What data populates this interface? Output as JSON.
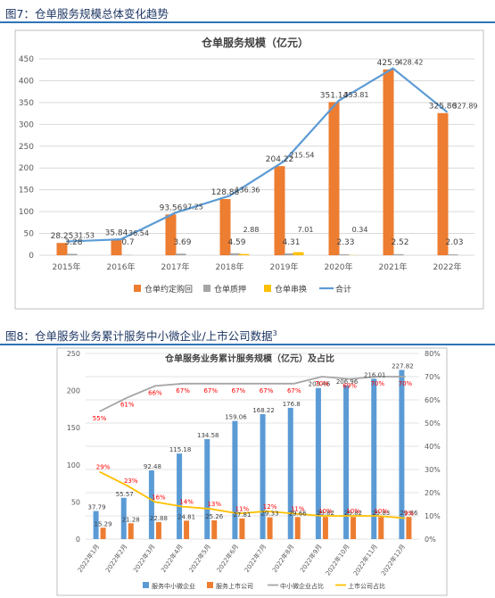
{
  "captions": {
    "fig7": "图7：仓单服务规模总体变化趋势",
    "fig8": "图8：仓单服务业务累计服务中小微企业/上市公司数据",
    "fig8_sup": "3"
  },
  "colors": {
    "orange": "#ed7d31",
    "gray": "#a5a5a5",
    "yellow": "#ffc000",
    "blue": "#5b9bd5",
    "red": "#ff0000",
    "caption": "#1f3864",
    "rule": "#2e75b6"
  },
  "chart_data": [
    {
      "type": "bar",
      "title": "仓单服务规模（亿元）",
      "categories": [
        "2015年",
        "2016年",
        "2017年",
        "2018年",
        "2019年",
        "2020年",
        "2021年",
        "2022年"
      ],
      "ylim": [
        0,
        450
      ],
      "yticks": [
        "0",
        "50",
        "100",
        "150",
        "200",
        "250",
        "300",
        "350",
        "400",
        "450"
      ],
      "grid": true,
      "legend_position": "bottom",
      "series": [
        {
          "name": "仓单约定购回",
          "kind": "bar",
          "values": [
            28.25,
            35.84,
            93.56,
            128.88,
            204.22,
            351.14,
            425.9,
            325.86
          ],
          "labels": [
            "28.25",
            "35.84",
            "93.56",
            "128.88",
            "204.22",
            "351.14",
            "425.9",
            "325.86"
          ]
        },
        {
          "name": "仓单质押",
          "kind": "bar",
          "values": [
            3.28,
            0.7,
            3.69,
            4.59,
            4.31,
            2.33,
            2.52,
            2.03
          ],
          "labels": [
            "3.28",
            "0.7",
            "3.69",
            "4.59",
            "4.31",
            "2.33",
            "2.52",
            "2.03"
          ]
        },
        {
          "name": "仓单串换",
          "kind": "bar",
          "values": [
            0,
            0,
            0,
            2.88,
            7.01,
            0.34,
            0,
            0
          ],
          "labels": [
            "",
            "",
            "",
            "2.88",
            "7.01",
            "0.34",
            "",
            ""
          ]
        },
        {
          "name": "合计",
          "kind": "line",
          "values": [
            31.53,
            36.54,
            97.25,
            136.36,
            215.54,
            353.81,
            428.42,
            327.89
          ],
          "labels": [
            "31.53",
            "36.54",
            "97.25",
            "136.36",
            "215.54",
            "353.81",
            "428.42",
            "327.89"
          ]
        }
      ]
    },
    {
      "type": "bar",
      "title": "仓单服务业务累计服务规模（亿元）及占比",
      "categories": [
        "2022年1月",
        "2022年2月",
        "2022年3月",
        "2022年4月",
        "2022年5月",
        "2022年6月",
        "2022年7月",
        "2022年8月",
        "2022年9月",
        "2022年10月",
        "2022年11月",
        "2022年12月"
      ],
      "ylim": [
        0,
        250
      ],
      "yticks": [
        "0",
        "50",
        "100",
        "150",
        "200",
        "250"
      ],
      "y2lim": [
        0,
        80
      ],
      "y2ticks": [
        "0%",
        "10%",
        "20%",
        "30%",
        "40%",
        "50%",
        "60%",
        "70%",
        "80%"
      ],
      "grid": true,
      "legend_position": "bottom",
      "series": [
        {
          "name": "服务中小微企业",
          "kind": "bar",
          "axis": "left",
          "values": [
            37.79,
            55.57,
            92.48,
            115.18,
            134.58,
            159.06,
            168.22,
            176.8,
            203.46,
            206.96,
            216.01,
            227.82
          ],
          "labels": [
            "37.79",
            "55.57",
            "92.48",
            "115.18",
            "134.58",
            "159.06",
            "168.22",
            "176.8",
            "203.46",
            "206.96",
            "216.01",
            "227.82"
          ]
        },
        {
          "name": "服务上市公司",
          "kind": "bar",
          "axis": "left",
          "values": [
            15.29,
            21.28,
            22.88,
            24.81,
            25.26,
            27.81,
            29.33,
            29.66,
            29.82,
            29.82,
            29.83,
            29.86
          ],
          "labels": [
            "15.29",
            "21.28",
            "22.88",
            "24.81",
            "25.26",
            "27.81",
            "29.33",
            "29.66",
            "29.82",
            "29.82",
            "29.83",
            "29.86"
          ]
        },
        {
          "name": "中小微企业占比",
          "kind": "line",
          "axis": "right",
          "values": [
            55,
            61,
            66,
            67,
            67,
            67,
            67,
            67,
            70,
            69,
            70,
            70
          ],
          "labels": [
            "55%",
            "61%",
            "66%",
            "67%",
            "67%",
            "67%",
            "67%",
            "67%",
            "70%",
            "69%",
            "70%",
            "70%"
          ]
        },
        {
          "name": "上市公司占比",
          "kind": "line",
          "axis": "right",
          "values": [
            29,
            23,
            16,
            14,
            13,
            11,
            12,
            11,
            10,
            10,
            10,
            9
          ],
          "labels": [
            "29%",
            "23%",
            "16%",
            "14%",
            "13%",
            "11%",
            "12%",
            "11%",
            "10%",
            "10%",
            "10%",
            "9%"
          ]
        }
      ]
    }
  ]
}
